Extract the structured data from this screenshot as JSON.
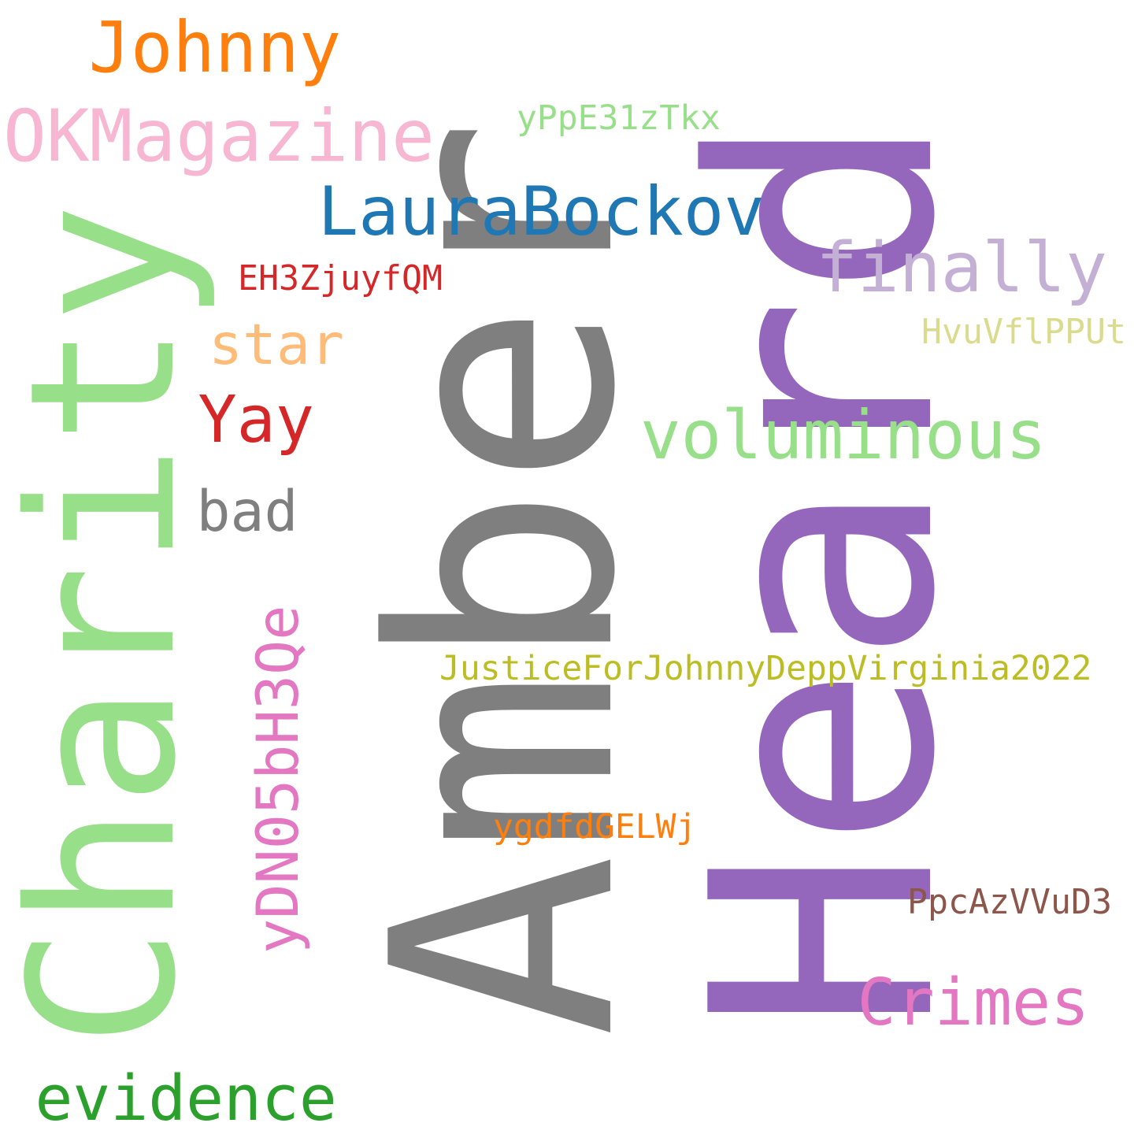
{
  "words": [
    {
      "id": "heard",
      "text": "Heard",
      "color": "#9467bd",
      "orientation": "vertical"
    },
    {
      "id": "amber",
      "text": "Amber",
      "color": "#7f7f7f",
      "orientation": "vertical"
    },
    {
      "id": "charity",
      "text": "Charity",
      "color": "#98df8a",
      "orientation": "vertical"
    },
    {
      "id": "ydn05bh3qe",
      "text": "yDN05bH3Qe",
      "color": "#e377c2",
      "orientation": "vertical"
    },
    {
      "id": "johnny",
      "text": "Johnny",
      "color": "#ff7f0e",
      "orientation": "horizontal"
    },
    {
      "id": "okmagazine",
      "text": "OKMagazine",
      "color": "#f7b6d2",
      "orientation": "horizontal"
    },
    {
      "id": "ypp",
      "text": "yPpE31zTkx",
      "color": "#98df8a",
      "orientation": "horizontal"
    },
    {
      "id": "laurabockov",
      "text": "LauraBockov",
      "color": "#1f77b4",
      "orientation": "horizontal"
    },
    {
      "id": "finally",
      "text": "finally",
      "color": "#c5b0d5",
      "orientation": "horizontal"
    },
    {
      "id": "eh3z",
      "text": "EH3ZjuyfQM",
      "color": "#d62728",
      "orientation": "horizontal"
    },
    {
      "id": "hvuv",
      "text": "HvuVflPPUt",
      "color": "#dbdb8d",
      "orientation": "horizontal"
    },
    {
      "id": "star",
      "text": "star",
      "color": "#ffbb78",
      "orientation": "horizontal"
    },
    {
      "id": "yay",
      "text": "Yay",
      "color": "#d62728",
      "orientation": "horizontal"
    },
    {
      "id": "voluminous",
      "text": "voluminous",
      "color": "#98df8a",
      "orientation": "horizontal"
    },
    {
      "id": "bad",
      "text": "bad",
      "color": "#7f7f7f",
      "orientation": "horizontal"
    },
    {
      "id": "justice",
      "text": "JusticeForJohnnyDeppVirginia2022",
      "color": "#bcbd22",
      "orientation": "horizontal"
    },
    {
      "id": "ygdf",
      "text": "ygdfdGELWj",
      "color": "#ff7f0e",
      "orientation": "horizontal"
    },
    {
      "id": "ppca",
      "text": "PpcAzVVuD3",
      "color": "#8c564b",
      "orientation": "horizontal"
    },
    {
      "id": "crimes",
      "text": "Crimes",
      "color": "#e377c2",
      "orientation": "horizontal"
    },
    {
      "id": "evidence",
      "text": "evidence",
      "color": "#2ca02c",
      "orientation": "horizontal"
    }
  ]
}
